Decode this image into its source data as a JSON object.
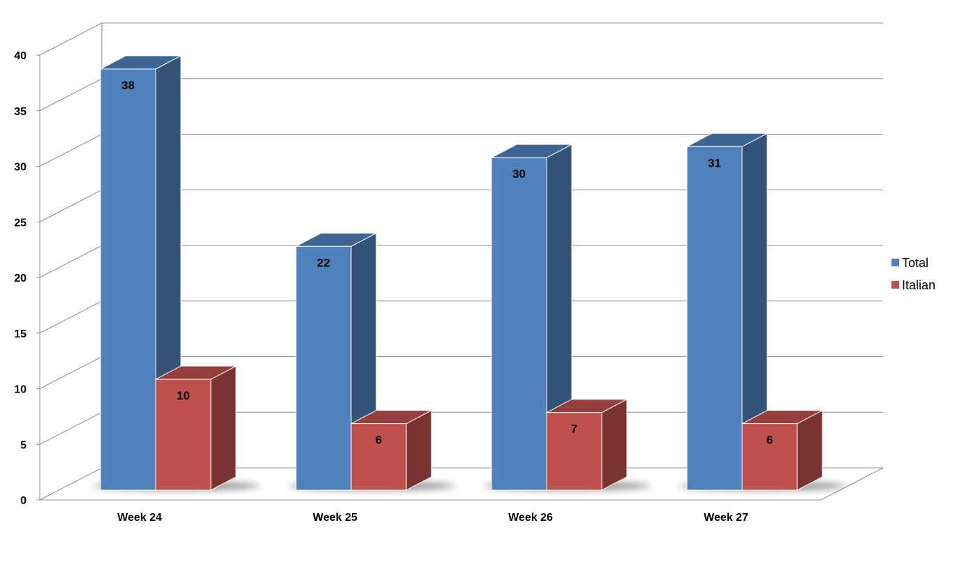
{
  "chart_data": {
    "type": "bar",
    "categories": [
      "Week 24",
      "Week 25",
      "Week 26",
      "Week 27"
    ],
    "series": [
      {
        "name": "Total",
        "values": [
          38,
          22,
          30,
          31
        ],
        "color": "#4f81bd"
      },
      {
        "name": "Italian",
        "values": [
          10,
          6,
          7,
          6
        ],
        "color": "#c0504d"
      }
    ],
    "ylim": [
      0,
      40
    ],
    "yticks": [
      0,
      5,
      10,
      15,
      20,
      25,
      30,
      35,
      40
    ],
    "grid": true,
    "legend_position": "right",
    "three_d": true
  }
}
